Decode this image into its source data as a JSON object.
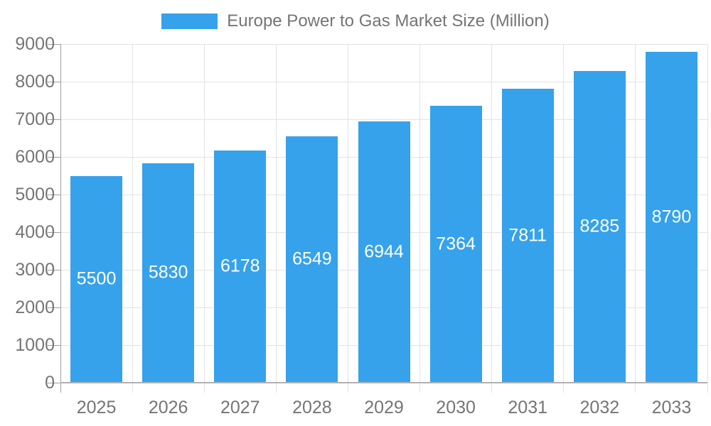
{
  "colors": {
    "bar": "#36A2EB",
    "grid": "#e3e3e3",
    "axis": "#9e9e9e",
    "baseline": "#b0b0b0",
    "tick_label": "#757575",
    "value_label": "#ffffff",
    "legend_label": "#757575",
    "background": "#ffffff"
  },
  "legend": {
    "label": "Europe Power to Gas Market Size (Million)"
  },
  "chart_data": {
    "type": "bar",
    "title": "Europe Power to Gas Market Size (Million)",
    "categories": [
      "2025",
      "2026",
      "2027",
      "2028",
      "2029",
      "2030",
      "2031",
      "2032",
      "2033"
    ],
    "values": [
      5500,
      5830,
      6178,
      6549,
      6944,
      7364,
      7811,
      8285,
      8790
    ],
    "series": [
      {
        "name": "Europe Power to Gas Market Size (Million)",
        "values": [
          5500,
          5830,
          6178,
          6549,
          6944,
          7364,
          7811,
          8285,
          8790
        ]
      }
    ],
    "xlabel": "",
    "ylabel": "",
    "ylim": [
      0,
      9000
    ],
    "ytick_step": 1000,
    "grid": true,
    "legend_position": "top",
    "value_labels": "inside-center"
  }
}
